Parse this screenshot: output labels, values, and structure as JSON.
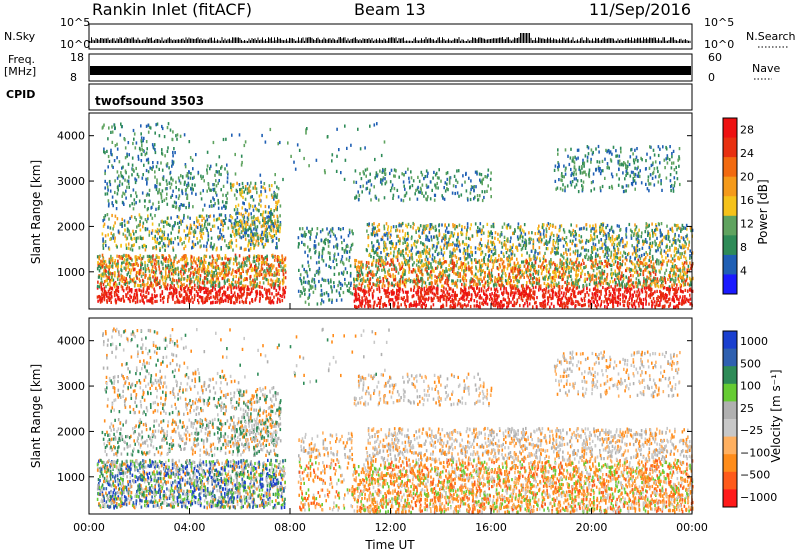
{
  "header": {
    "title": "Rankin Inlet (fitACF)",
    "beam": "Beam 13",
    "date": "11/Sep/2016"
  },
  "strip_panels": {
    "nsky_label": "N.Sky",
    "nsky_ticks": [
      "10^5",
      "10^0"
    ],
    "nsearch_label": "N.Search",
    "nsearch_ticks": [
      "10^5",
      "10^0"
    ],
    "freq_label_1": "Freq.",
    "freq_label_2": "[MHz]",
    "freq_ticks": [
      "18",
      "8"
    ],
    "nave_label": "Nave",
    "nave_ticks": [
      "60",
      "0"
    ],
    "cpid_label": "CPID",
    "cpid_value": "twofsound 3503"
  },
  "colors": {
    "power_scale": [
      "#1a1aff",
      "#1f5fb4",
      "#2e8b57",
      "#5fa35f",
      "#f5c21a",
      "#f59a1a",
      "#f26a10",
      "#e83010",
      "#ee1111"
    ],
    "velocity_scale": [
      "#ff1a1a",
      "#ff5a1a",
      "#ff8c1a",
      "#ffb060",
      "#c8c8c8",
      "#b0b0b0",
      "#66cc33",
      "#2e8b57",
      "#2f60b0",
      "#1a3fcf"
    ]
  },
  "chart_data": [
    {
      "type": "heatmap",
      "quantity": "Power",
      "xlabel": "",
      "ylabel": "Slant Range [km]",
      "x_ticks": [
        "00:00",
        "04:00",
        "08:00",
        "12:00",
        "16:00",
        "20:00",
        "00:00"
      ],
      "x_range_hours": [
        0,
        24
      ],
      "y_ticks": [
        1000,
        2000,
        3000,
        4000
      ],
      "y_range_km": [
        180,
        4500
      ],
      "colorbar_label": "Power [dB]",
      "colorbar_ticks": [
        4,
        8,
        12,
        16,
        20,
        24,
        28
      ],
      "colorbar_range": [
        0,
        30
      ]
    },
    {
      "type": "heatmap",
      "quantity": "Velocity",
      "xlabel": "Time UT",
      "ylabel": "Slant Range [km]",
      "x_ticks": [
        "00:00",
        "04:00",
        "08:00",
        "12:00",
        "16:00",
        "20:00",
        "00:00"
      ],
      "x_range_hours": [
        0,
        24
      ],
      "y_ticks": [
        1000,
        2000,
        3000,
        4000
      ],
      "y_range_km": [
        180,
        4500
      ],
      "colorbar_label": "Velocity [m s⁻¹]",
      "colorbar_ticks": [
        "1000",
        "500",
        "100",
        "25",
        "−25",
        "−100",
        "−500",
        "−1000"
      ]
    }
  ]
}
